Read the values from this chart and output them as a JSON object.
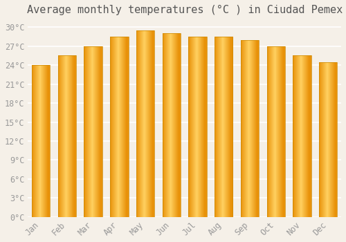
{
  "title": "Average monthly temperatures (°C ) in Ciudad Pemex",
  "months": [
    "Jan",
    "Feb",
    "Mar",
    "Apr",
    "May",
    "Jun",
    "Jul",
    "Aug",
    "Sep",
    "Oct",
    "Nov",
    "Dec"
  ],
  "temperatures": [
    24.0,
    25.5,
    27.0,
    28.5,
    29.5,
    29.0,
    28.5,
    28.5,
    28.0,
    27.0,
    25.5,
    24.5
  ],
  "bar_color_main": "#FFA520",
  "bar_color_light": "#FFD966",
  "bar_color_dark": "#E8900A",
  "ylim": [
    0,
    31
  ],
  "yticks": [
    0,
    3,
    6,
    9,
    12,
    15,
    18,
    21,
    24,
    27,
    30
  ],
  "ytick_labels": [
    "0°C",
    "3°C",
    "6°C",
    "9°C",
    "12°C",
    "15°C",
    "18°C",
    "21°C",
    "24°C",
    "27°C",
    "30°C"
  ],
  "background_color": "#F5F0E8",
  "grid_color": "#FFFFFF",
  "title_fontsize": 11,
  "tick_fontsize": 8.5,
  "bar_width": 0.7,
  "tick_color": "#999999"
}
